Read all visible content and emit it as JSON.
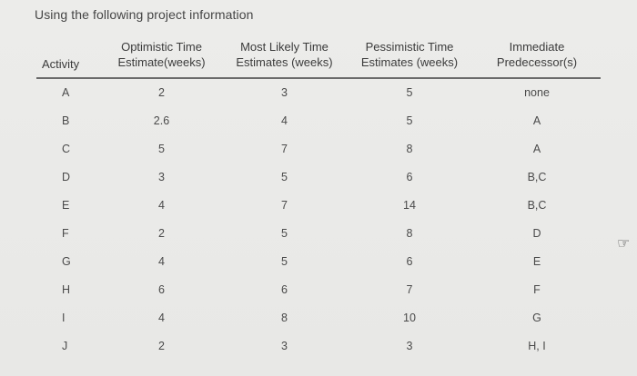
{
  "intro_text": "Using the following project information",
  "table": {
    "headers": {
      "activity": "Activity",
      "optimistic_line1": "Optimistic Time",
      "optimistic_line2": "Estimate(weeks)",
      "most_likely_line1": "Most Likely Time",
      "most_likely_line2": "Estimates (weeks)",
      "pessimistic_line1": "Pessimistic Time",
      "pessimistic_line2": "Estimates (weeks)",
      "predecessor_line1": "Immediate",
      "predecessor_line2": "Predecessor(s)"
    },
    "rows": [
      {
        "activity": "A",
        "optimistic": "2",
        "most_likely": "3",
        "pessimistic": "5",
        "predecessor": "none"
      },
      {
        "activity": "B",
        "optimistic": "2.6",
        "most_likely": "4",
        "pessimistic": "5",
        "predecessor": "A"
      },
      {
        "activity": "C",
        "optimistic": "5",
        "most_likely": "7",
        "pessimistic": "8",
        "predecessor": "A"
      },
      {
        "activity": "D",
        "optimistic": "3",
        "most_likely": "5",
        "pessimistic": "6",
        "predecessor": "B,C"
      },
      {
        "activity": "E",
        "optimistic": "4",
        "most_likely": "7",
        "pessimistic": "14",
        "predecessor": "B,C"
      },
      {
        "activity": "F",
        "optimistic": "2",
        "most_likely": "5",
        "pessimistic": "8",
        "predecessor": "D"
      },
      {
        "activity": "G",
        "optimistic": "4",
        "most_likely": "5",
        "pessimistic": "6",
        "predecessor": "E"
      },
      {
        "activity": "H",
        "optimistic": "6",
        "most_likely": "6",
        "pessimistic": "7",
        "predecessor": "F"
      },
      {
        "activity": "I",
        "optimistic": "4",
        "most_likely": "8",
        "pessimistic": "10",
        "predecessor": "G"
      },
      {
        "activity": "J",
        "optimistic": "2",
        "most_likely": "3",
        "pessimistic": "3",
        "predecessor": "H, I"
      }
    ]
  },
  "pointer_icon": "hand-cursor-icon"
}
